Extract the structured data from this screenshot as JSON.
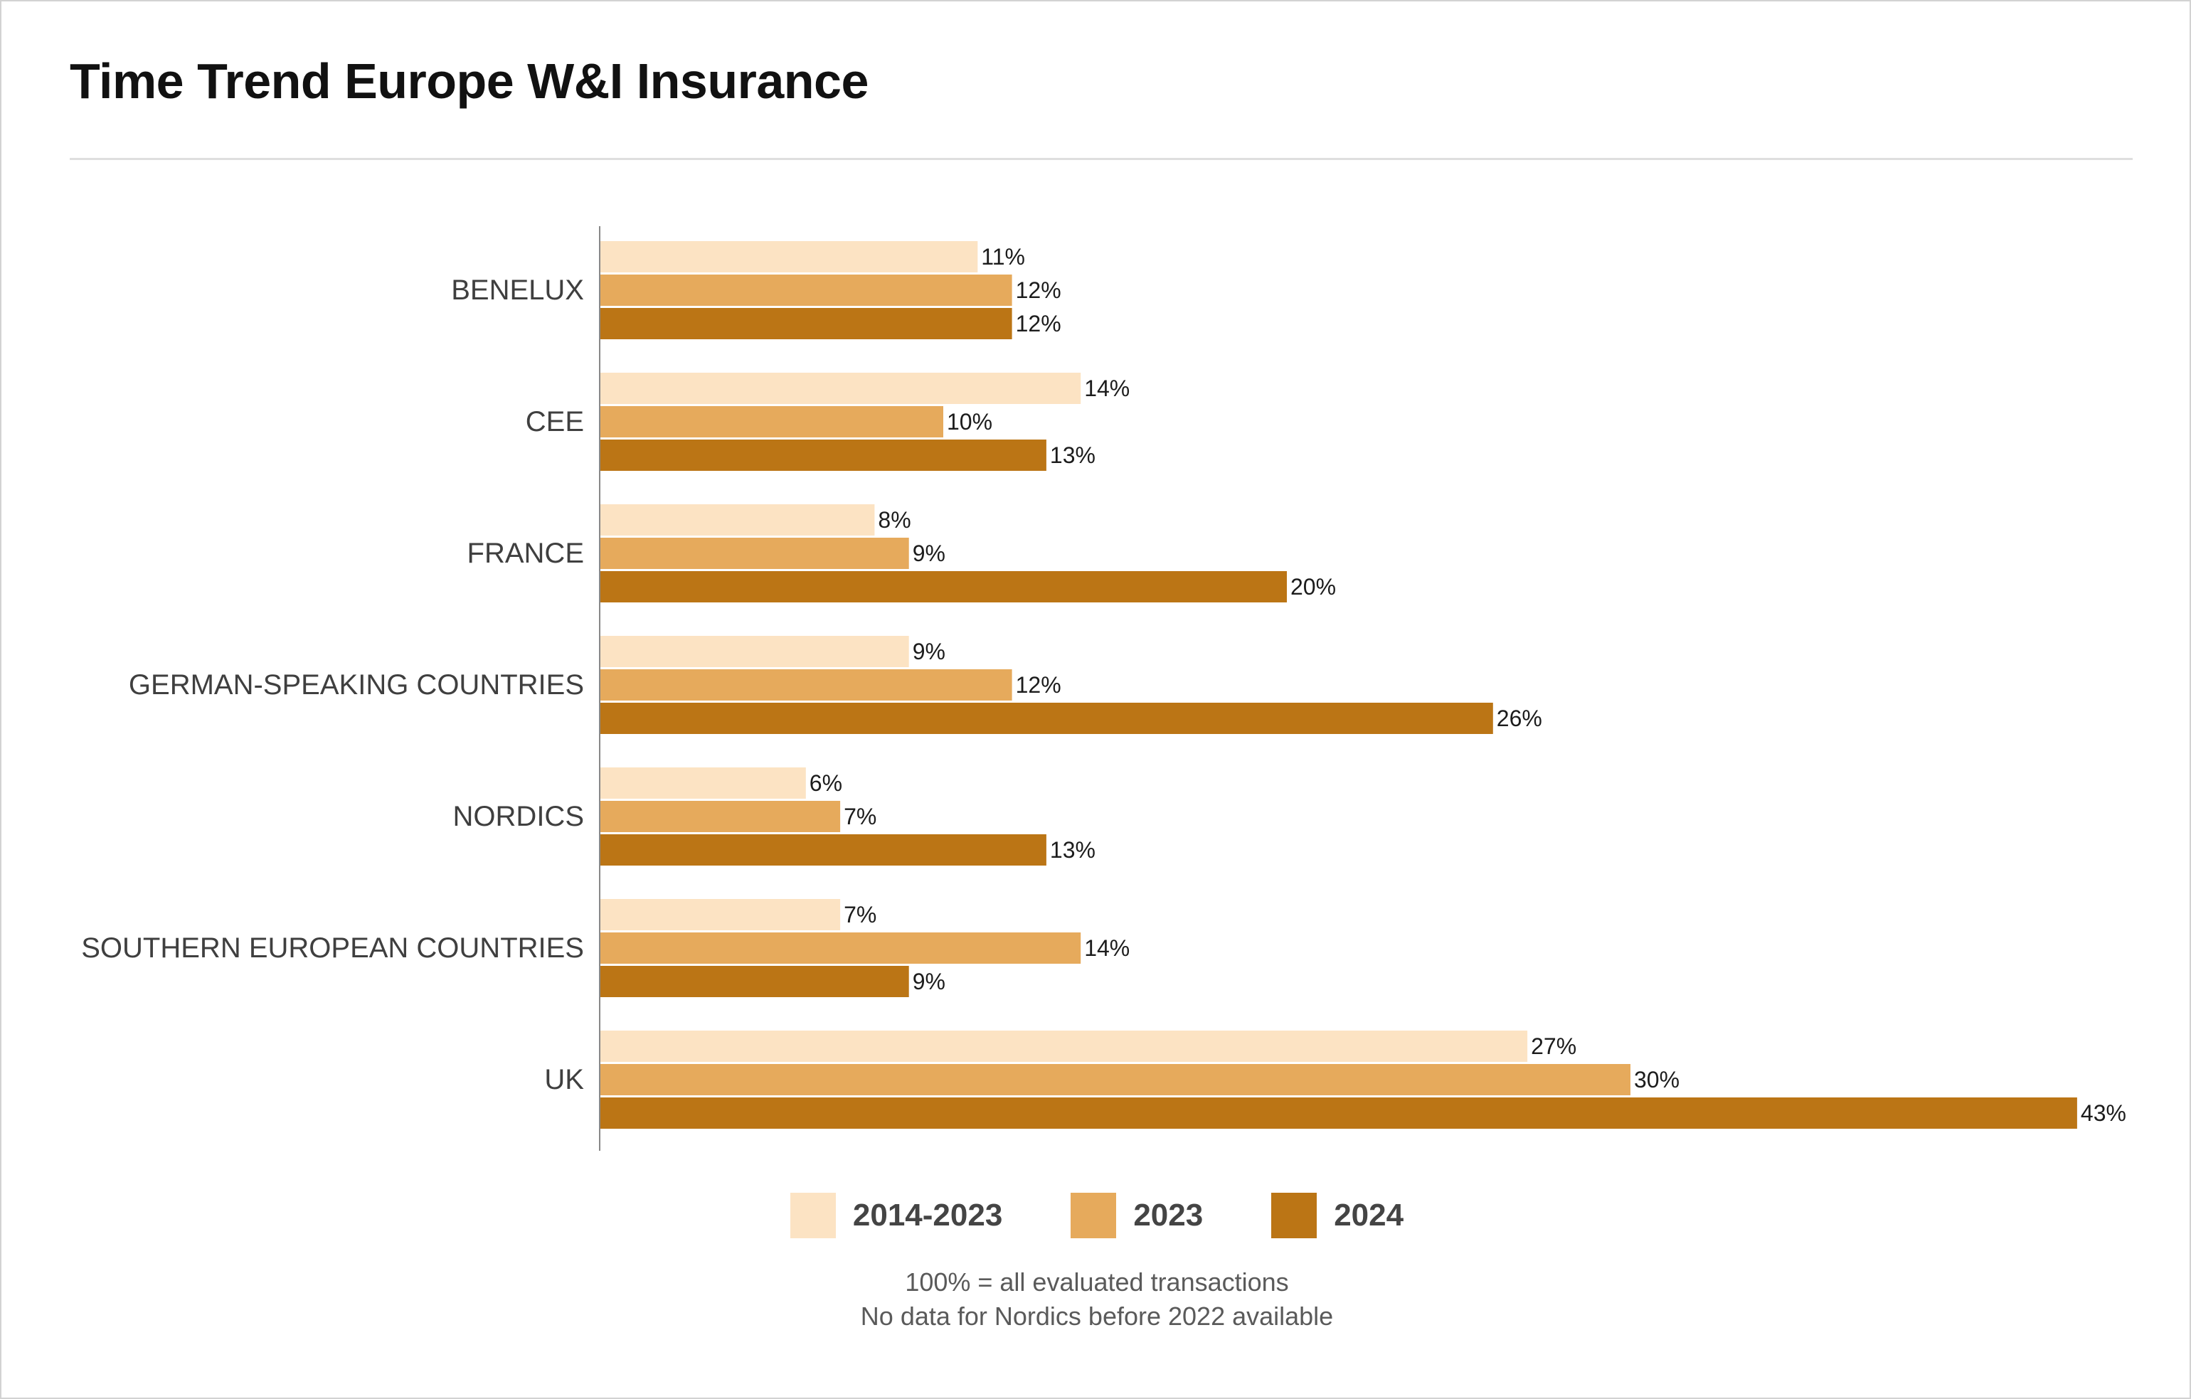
{
  "colors": {
    "c2014": "#fce3c3",
    "c2023": "#e6aa5c",
    "c2024": "#bb7515",
    "axis": "#888888"
  },
  "chart_data": {
    "type": "bar",
    "orientation": "horizontal",
    "title": "Time Trend Europe W&I Insurance",
    "xlabel": "",
    "ylabel": "",
    "xlim": [
      0,
      45
    ],
    "grid": false,
    "legend_position": "bottom",
    "categories": [
      "BENELUX",
      "CEE",
      "FRANCE",
      "GERMAN-SPEAKING COUNTRIES",
      "NORDICS",
      "SOUTHERN EUROPEAN COUNTRIES",
      "UK"
    ],
    "series": [
      {
        "name": "2014-2023",
        "color": "#fce3c3",
        "values": [
          11,
          14,
          8,
          9,
          6,
          7,
          27
        ],
        "labels": [
          "11%",
          "14%",
          "8%",
          "9%",
          "6%",
          "7%",
          "27%"
        ]
      },
      {
        "name": "2023",
        "color": "#e6aa5c",
        "values": [
          12,
          10,
          9,
          12,
          7,
          14,
          30
        ],
        "labels": [
          "12%",
          "10%",
          "9%",
          "12%",
          "7%",
          "14%",
          "30%"
        ]
      },
      {
        "name": "2024",
        "color": "#bb7515",
        "values": [
          12,
          13,
          20,
          26,
          13,
          9,
          43
        ],
        "labels": [
          "12%",
          "13%",
          "20%",
          "26%",
          "13%",
          "9%",
          "43%"
        ]
      }
    ],
    "notes": [
      "100% = all evaluated transactions",
      "No data for Nordics before 2022 available"
    ]
  }
}
